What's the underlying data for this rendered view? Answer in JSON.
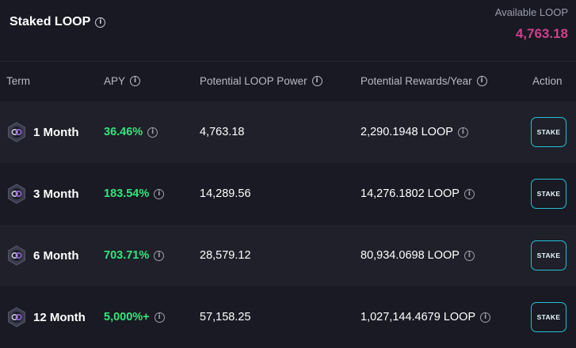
{
  "header": {
    "title": "Staked LOOP",
    "available_label": "Available LOOP",
    "available_value": "4,763.18"
  },
  "columns": {
    "term": "Term",
    "apy": "APY",
    "power": "Potential LOOP Power",
    "rewards": "Potential Rewards/Year",
    "action": "Action"
  },
  "rows": [
    {
      "term": "1 Month",
      "apy": "36.46%",
      "power": "4,763.18",
      "rewards": "2,290.1948 LOOP",
      "action": "STAKE"
    },
    {
      "term": "3 Month",
      "apy": "183.54%",
      "power": "14,289.56",
      "rewards": "14,276.1802 LOOP",
      "action": "STAKE"
    },
    {
      "term": "6 Month",
      "apy": "703.71%",
      "power": "28,579.12",
      "rewards": "80,934.0698 LOOP",
      "action": "STAKE"
    },
    {
      "term": "12 Month",
      "apy": "5,000%+",
      "power": "57,158.25",
      "rewards": "1,027,144.4679 LOOP",
      "action": "STAKE"
    }
  ],
  "info_glyph": "i",
  "colors": {
    "apy_green": "#32e57c",
    "available_pink": "#d03f8b",
    "stake_border": "#25c0d6"
  }
}
